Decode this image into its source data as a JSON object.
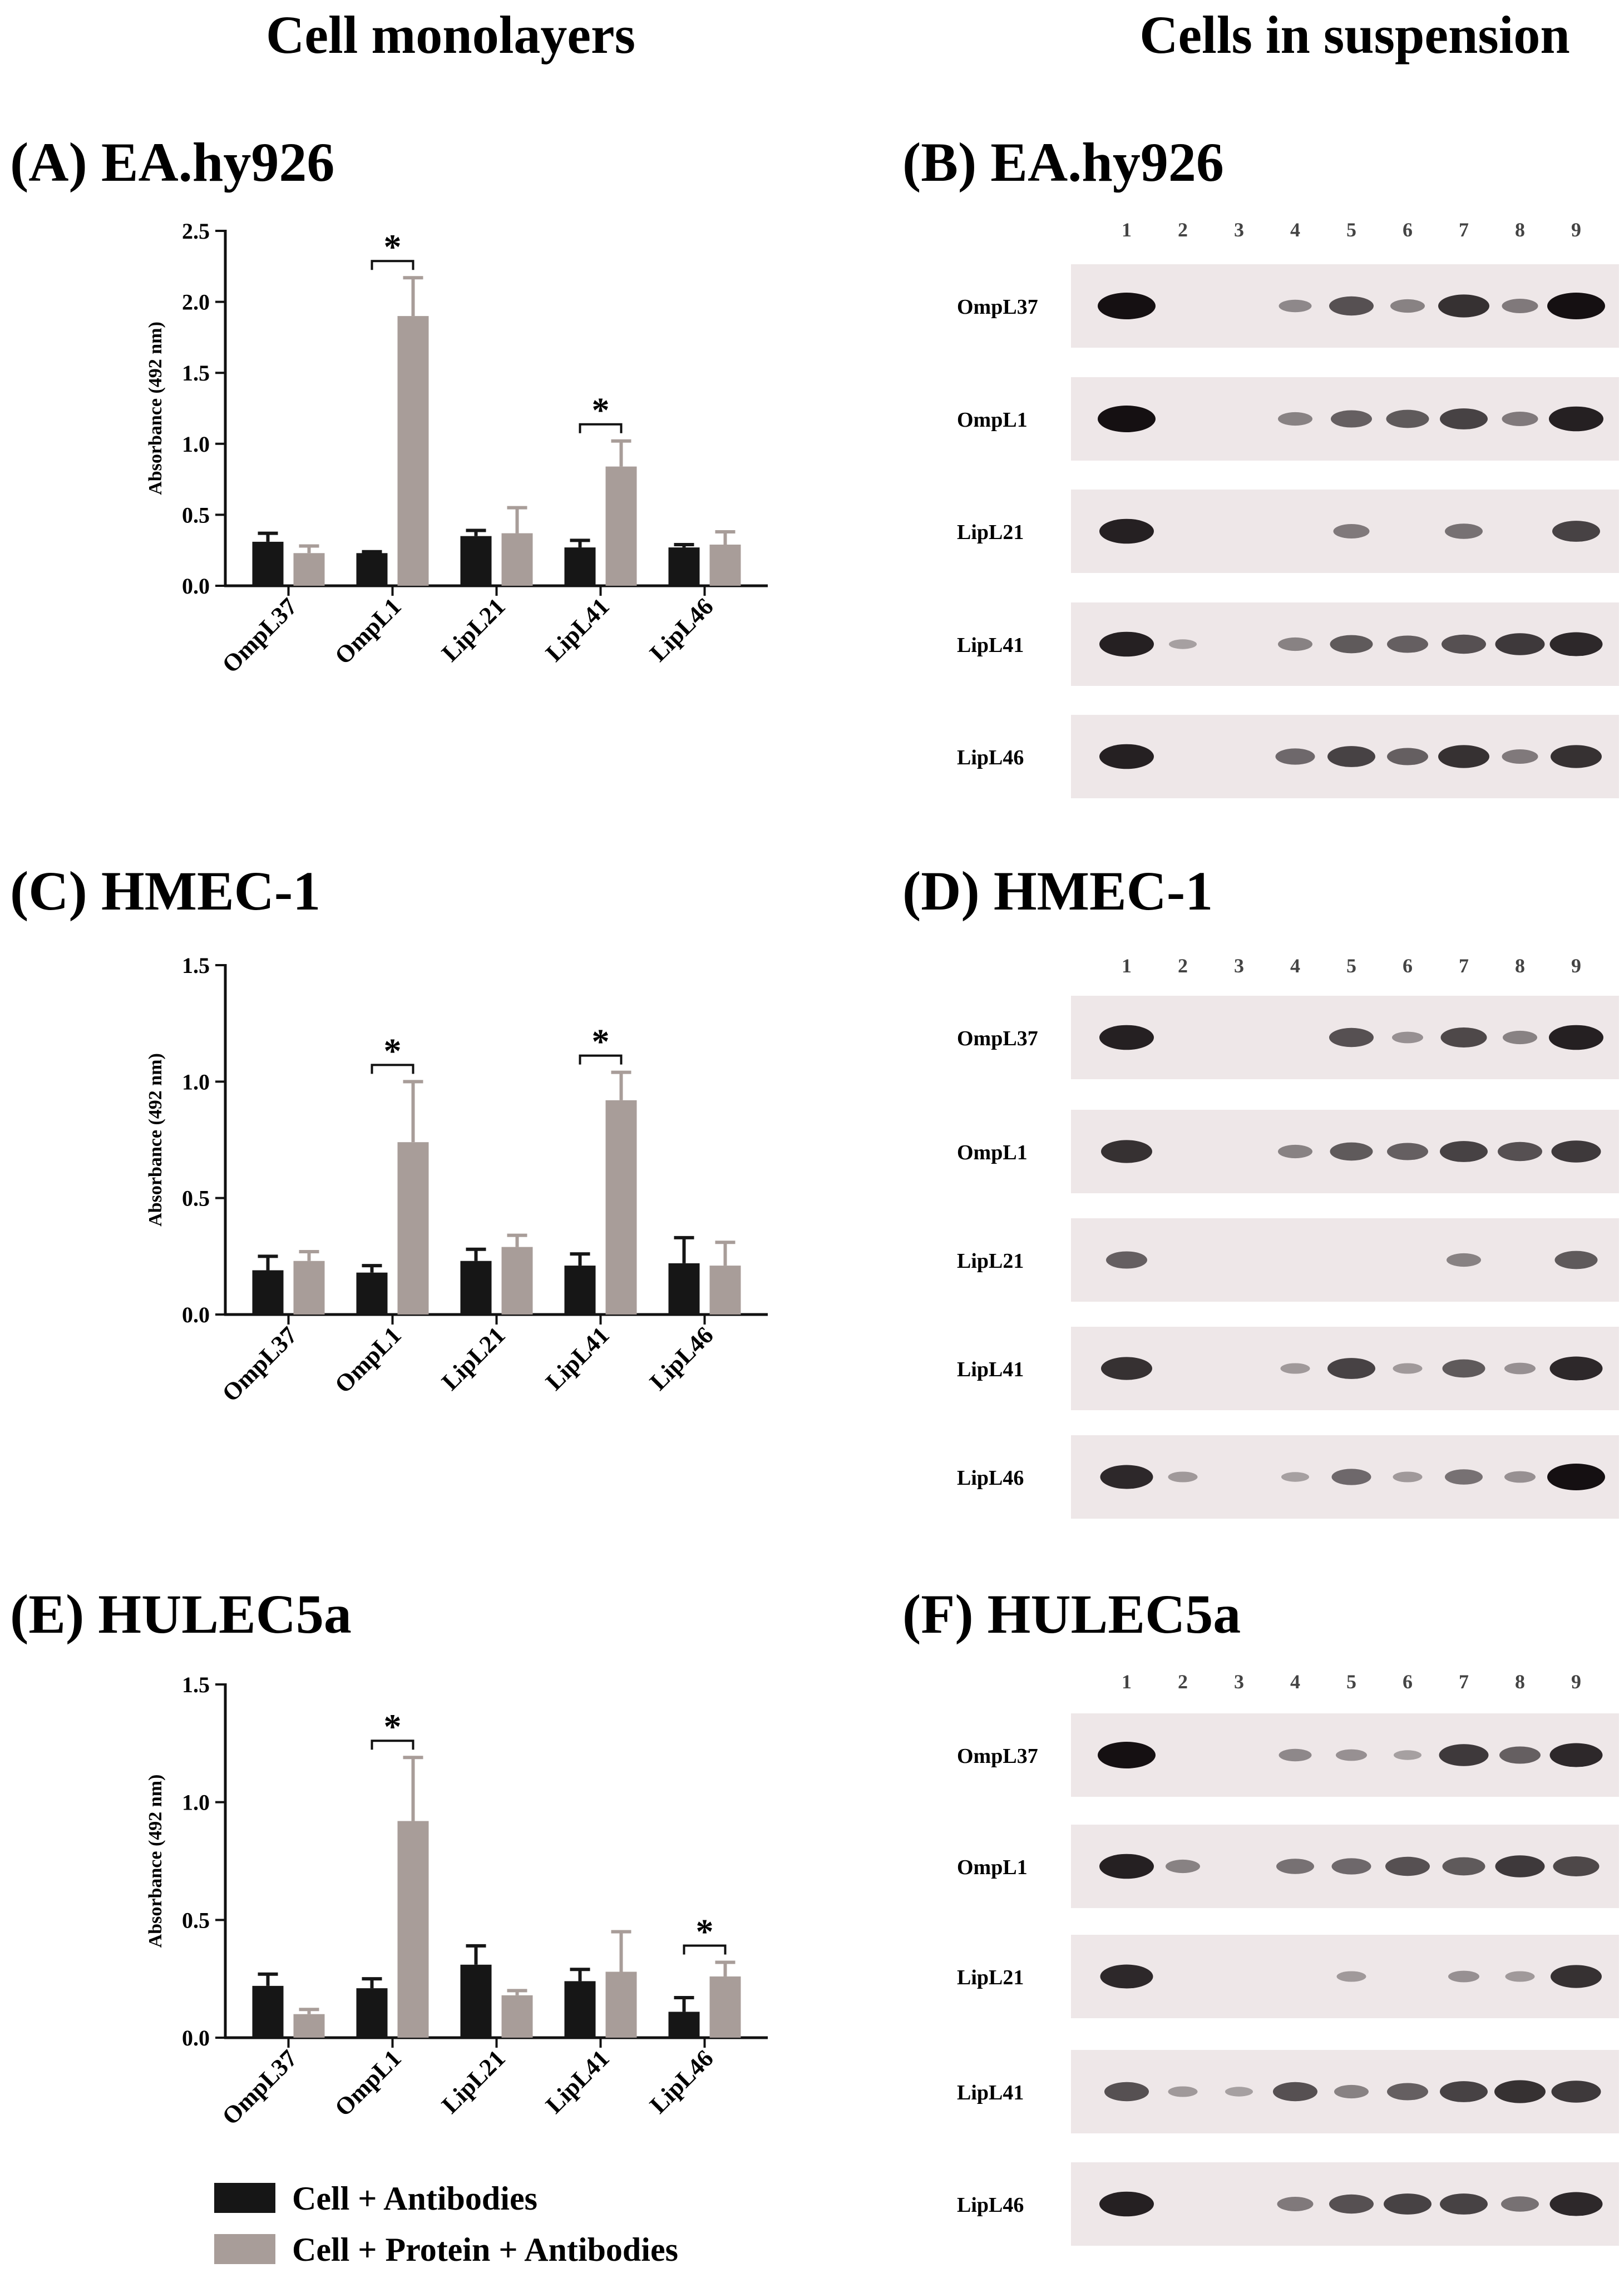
{
  "figure": {
    "left_title": "Cell monolayers",
    "right_title": "Cells in suspension"
  },
  "colors": {
    "cell_antibodies": "#161616",
    "cell_protein_antibodies": "#a89d99",
    "blot_background": "#eee7e8",
    "band": "#151012"
  },
  "legend": [
    {
      "label": "Cell + Antibodies",
      "color": "#161616"
    },
    {
      "label": "Cell + Protein + Antibodies",
      "color": "#a89d99"
    }
  ],
  "chart_data": [
    {
      "panel": "(A) EA.hy926",
      "type": "bar",
      "ylabel": "Absorbance (492 nm)",
      "ylim": [
        0,
        2.5
      ],
      "yticks": [
        "0.0",
        "0.5",
        "1.0",
        "1.5",
        "2.0",
        "2.5"
      ],
      "categories": [
        "OmpL37",
        "OmpL1",
        "LipL21",
        "LipL41",
        "LipL46"
      ],
      "series": [
        {
          "name": "Cell + Antibodies",
          "values": [
            0.31,
            0.23,
            0.35,
            0.27,
            0.27
          ],
          "errors": [
            0.06,
            0.01,
            0.04,
            0.05,
            0.02
          ]
        },
        {
          "name": "Cell + Protein + Antibodies",
          "values": [
            0.23,
            1.9,
            0.37,
            0.84,
            0.29
          ],
          "errors": [
            0.05,
            0.27,
            0.18,
            0.18,
            0.09
          ]
        }
      ],
      "significance": [
        {
          "category": "OmpL1",
          "label": "*"
        },
        {
          "category": "LipL41",
          "label": "*"
        }
      ]
    },
    {
      "panel": "(C) HMEC-1",
      "type": "bar",
      "ylabel": "Absorbance (492 nm)",
      "ylim": [
        0,
        1.5
      ],
      "yticks": [
        "0.0",
        "0.5",
        "1.0",
        "1.5"
      ],
      "categories": [
        "OmpL37",
        "OmpL1",
        "LipL21",
        "LipL41",
        "LipL46"
      ],
      "series": [
        {
          "name": "Cell + Antibodies",
          "values": [
            0.19,
            0.18,
            0.23,
            0.21,
            0.22
          ],
          "errors": [
            0.06,
            0.03,
            0.05,
            0.05,
            0.11
          ]
        },
        {
          "name": "Cell + Protein + Antibodies",
          "values": [
            0.23,
            0.74,
            0.29,
            0.92,
            0.21
          ],
          "errors": [
            0.04,
            0.26,
            0.05,
            0.12,
            0.1
          ]
        }
      ],
      "significance": [
        {
          "category": "OmpL1",
          "label": "*"
        },
        {
          "category": "LipL41",
          "label": "*"
        }
      ]
    },
    {
      "panel": "(E) HULEC5a",
      "type": "bar",
      "ylabel": "Absorbance (492 nm)",
      "ylim": [
        0,
        1.5
      ],
      "yticks": [
        "0.0",
        "0.5",
        "1.0",
        "1.5"
      ],
      "categories": [
        "OmpL37",
        "OmpL1",
        "LipL21",
        "LipL41",
        "LipL46"
      ],
      "series": [
        {
          "name": "Cell + Antibodies",
          "values": [
            0.22,
            0.21,
            0.31,
            0.24,
            0.11
          ],
          "errors": [
            0.05,
            0.04,
            0.08,
            0.05,
            0.06
          ]
        },
        {
          "name": "Cell + Protein + Antibodies",
          "values": [
            0.1,
            0.92,
            0.18,
            0.28,
            0.26
          ],
          "errors": [
            0.02,
            0.27,
            0.02,
            0.17,
            0.06
          ]
        }
      ],
      "significance": [
        {
          "category": "OmpL1",
          "label": "*"
        },
        {
          "category": "LipL46",
          "label": "*"
        }
      ]
    }
  ],
  "blots": [
    {
      "panel": "(B) EA.hy926",
      "lanes": [
        "1",
        "2",
        "3",
        "4",
        "5",
        "6",
        "7",
        "8",
        "9"
      ],
      "rows": [
        {
          "label": "OmpL37",
          "bands": [
            1.0,
            0,
            0,
            0.25,
            0.6,
            0.3,
            0.8,
            0.35,
            1.0
          ]
        },
        {
          "label": "OmpL1",
          "bands": [
            1.0,
            0,
            0,
            0.3,
            0.5,
            0.55,
            0.7,
            0.35,
            0.9
          ]
        },
        {
          "label": "LipL21",
          "bands": [
            0.9,
            0,
            0,
            0,
            0.35,
            0,
            0.4,
            0,
            0.7
          ]
        },
        {
          "label": "LipL41",
          "bands": [
            0.9,
            0.1,
            0,
            0.3,
            0.55,
            0.5,
            0.6,
            0.75,
            0.85
          ]
        },
        {
          "label": "LipL46",
          "bands": [
            0.9,
            0,
            0,
            0.45,
            0.7,
            0.5,
            0.8,
            0.35,
            0.8
          ]
        }
      ]
    },
    {
      "panel": "(D) HMEC-1",
      "lanes": [
        "1",
        "2",
        "3",
        "4",
        "5",
        "6",
        "7",
        "8",
        "9"
      ],
      "rows": [
        {
          "label": "OmpL37",
          "bands": [
            0.9,
            0,
            0,
            0,
            0.6,
            0.2,
            0.65,
            0.3,
            0.9
          ]
        },
        {
          "label": "OmpL1",
          "bands": [
            0.8,
            0,
            0,
            0.3,
            0.55,
            0.5,
            0.7,
            0.6,
            0.75
          ]
        },
        {
          "label": "LipL21",
          "bands": [
            0.5,
            0,
            0,
            0,
            0,
            0,
            0.3,
            0,
            0.55
          ]
        },
        {
          "label": "LipL41",
          "bands": [
            0.8,
            0,
            0,
            0.15,
            0.7,
            0.15,
            0.55,
            0.2,
            0.85
          ]
        },
        {
          "label": "LipL46",
          "bands": [
            0.85,
            0.15,
            0,
            0.1,
            0.45,
            0.15,
            0.4,
            0.2,
            1.0
          ]
        }
      ]
    },
    {
      "panel": "(F) HULEC5a",
      "lanes": [
        "1",
        "2",
        "3",
        "4",
        "5",
        "6",
        "7",
        "8",
        "9"
      ],
      "rows": [
        {
          "label": "OmpL37",
          "bands": [
            1.0,
            0,
            0,
            0.25,
            0.2,
            0.1,
            0.75,
            0.5,
            0.85
          ]
        },
        {
          "label": "OmpL1",
          "bands": [
            0.9,
            0.3,
            0,
            0.4,
            0.45,
            0.6,
            0.55,
            0.75,
            0.65
          ]
        },
        {
          "label": "LipL21",
          "bands": [
            0.85,
            0,
            0,
            0,
            0.15,
            0,
            0.2,
            0.15,
            0.8
          ]
        },
        {
          "label": "LipL41",
          "bands": [
            0.6,
            0.15,
            0.1,
            0.6,
            0.3,
            0.5,
            0.7,
            0.8,
            0.75
          ]
        },
        {
          "label": "LipL46",
          "bands": [
            0.9,
            0,
            0,
            0.35,
            0.6,
            0.7,
            0.7,
            0.4,
            0.85
          ]
        }
      ]
    }
  ]
}
